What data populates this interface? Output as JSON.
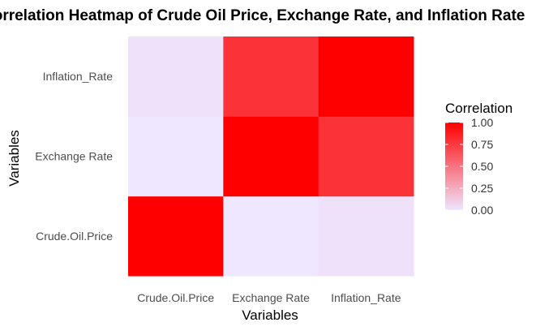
{
  "chart_data": {
    "type": "heatmap",
    "title": "Correlation Heatmap of Crude Oil Price, Exchange Rate, and Inflation Rate",
    "xlabel": "Variables",
    "ylabel": "Variables",
    "x_categories": [
      "Crude.Oil.Price",
      "Exchange Rate",
      "Inflation_Rate"
    ],
    "y_categories": [
      "Crude.Oil.Price",
      "Exchange Rate",
      "Inflation_Rate"
    ],
    "values": [
      [
        1.0,
        0.0,
        0.02
      ],
      [
        0.0,
        1.0,
        0.78
      ],
      [
        0.02,
        0.78,
        1.0
      ]
    ],
    "legend": {
      "title": "Correlation",
      "ticks": [
        0.0,
        0.25,
        0.5,
        0.75,
        1.0
      ],
      "tick_labels": [
        "0.00",
        "0.25",
        "0.50",
        "0.75",
        "1.00"
      ],
      "placement": "right"
    },
    "color_scale": {
      "low": "#efe6ff",
      "high": "#ff0000",
      "range": [
        0,
        1
      ]
    },
    "grid": false
  }
}
